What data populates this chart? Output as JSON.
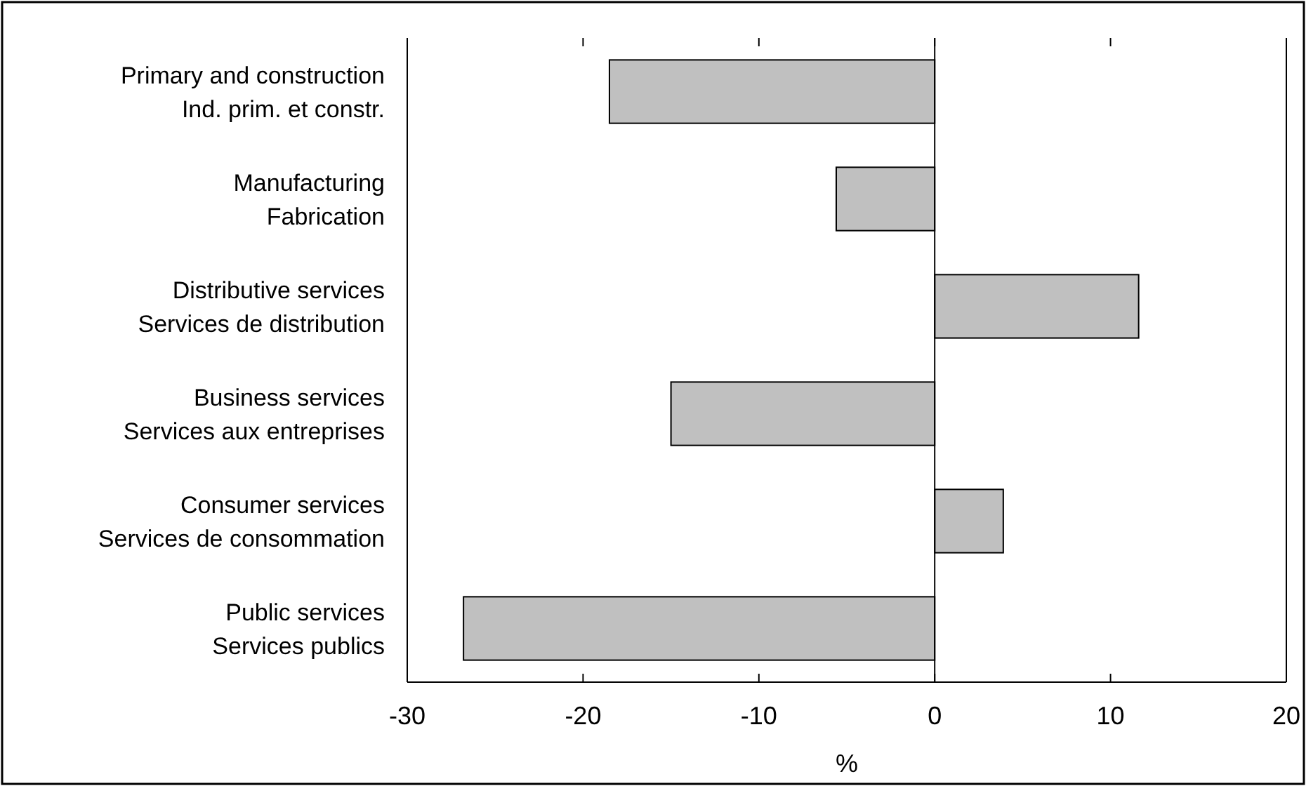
{
  "chart_data": {
    "type": "bar",
    "orientation": "horizontal",
    "xlabel": "%",
    "categories": [
      "Primary and construction\nInd. prim. et constr.",
      "Manufacturing\nFabrication",
      "Distributive services\nServices de distribution",
      "Business services\nServices aux entreprises",
      "Consumer services\nServices de consommation",
      "Public services\nServices publics"
    ],
    "values": [
      -18.5,
      -5.6,
      11.6,
      -15.0,
      3.9,
      -26.8
    ],
    "color": "#c0c0c0",
    "xlim": [
      -30,
      20
    ],
    "xticks": [
      -30,
      -20,
      -10,
      0,
      10,
      20
    ],
    "ref_lines": [
      {
        "axis": "x",
        "value": 0
      }
    ]
  }
}
